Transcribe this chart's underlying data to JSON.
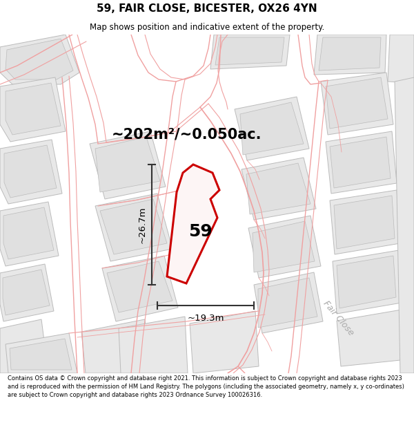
{
  "title_line1": "59, FAIR CLOSE, BICESTER, OX26 4YN",
  "title_line2": "Map shows position and indicative extent of the property.",
  "area_text": "~202m²/~0.050ac.",
  "label_59": "59",
  "dim_height": "~26.7m",
  "dim_width": "~19.3m",
  "footer_text": "Contains OS data © Crown copyright and database right 2021. This information is subject to Crown copyright and database rights 2023 and is reproduced with the permission of HM Land Registry. The polygons (including the associated geometry, namely x, y co-ordinates) are subject to Crown copyright and database rights 2023 Ordnance Survey 100026316.",
  "road_label": "Fair Close",
  "map_bg": "#ffffff",
  "property_color": "#cc0000",
  "building_fill": "#e8e8e8",
  "building_edge": "#bbbbbb",
  "road_line_color": "#f0a0a0",
  "dim_color": "#333333",
  "label_color": "#aaaaaa"
}
